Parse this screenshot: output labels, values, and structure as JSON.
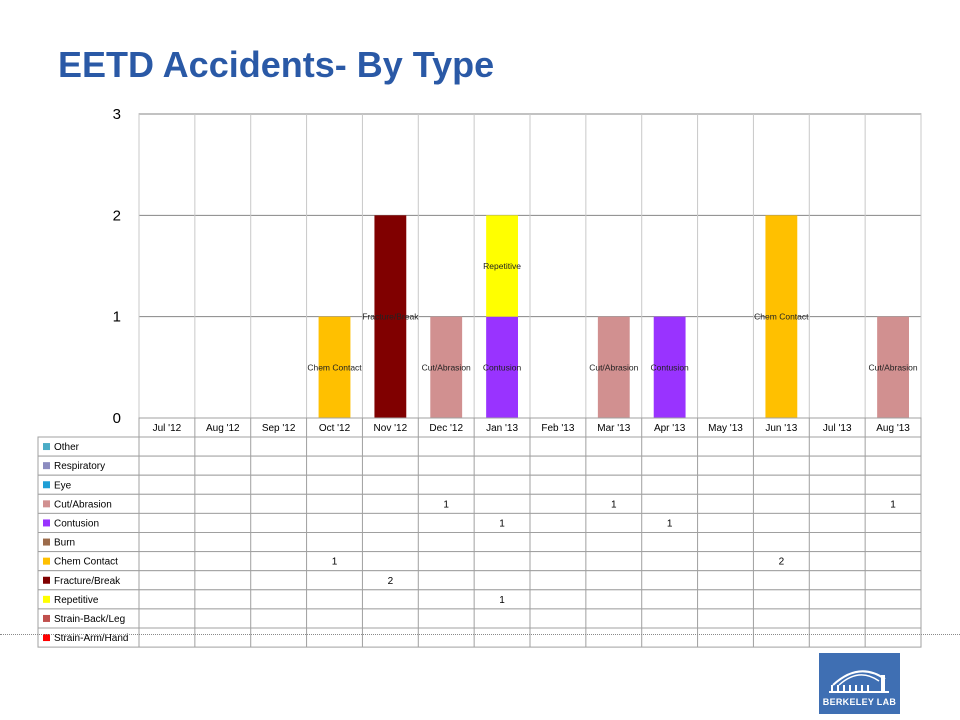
{
  "title": "EETD Accidents- By Type",
  "logo": {
    "text": "BERKELEY LAB"
  },
  "chart_data": {
    "type": "bar",
    "stacked": true,
    "categories": [
      "Jul '12",
      "Aug '12",
      "Sep '12",
      "Oct '12",
      "Nov '12",
      "Dec '12",
      "Jan '13",
      "Feb '13",
      "Mar '13",
      "Apr '13",
      "May '13",
      "Jun '13",
      "Jul '13",
      "Aug '13"
    ],
    "ylim": [
      0,
      3
    ],
    "yticks": [
      0,
      1,
      2,
      3
    ],
    "grid": true,
    "legend": "data-table-below",
    "series": [
      {
        "name": "Other",
        "color": "#4bacc6",
        "values": [
          null,
          null,
          null,
          null,
          null,
          null,
          null,
          null,
          null,
          null,
          null,
          null,
          null,
          null
        ]
      },
      {
        "name": "Respiratory",
        "color": "#8c8cc0",
        "values": [
          null,
          null,
          null,
          null,
          null,
          null,
          null,
          null,
          null,
          null,
          null,
          null,
          null,
          null
        ]
      },
      {
        "name": "Eye",
        "color": "#1f9fd6",
        "values": [
          null,
          null,
          null,
          null,
          null,
          null,
          null,
          null,
          null,
          null,
          null,
          null,
          null,
          null
        ]
      },
      {
        "name": "Cut/Abrasion",
        "color": "#d19090",
        "values": [
          null,
          null,
          null,
          null,
          null,
          1,
          null,
          null,
          1,
          null,
          null,
          null,
          null,
          1
        ]
      },
      {
        "name": "Contusion",
        "color": "#9933ff",
        "values": [
          null,
          null,
          null,
          null,
          null,
          null,
          1,
          null,
          null,
          1,
          null,
          null,
          null,
          null
        ]
      },
      {
        "name": "Burn",
        "color": "#9c6b4a",
        "values": [
          null,
          null,
          null,
          null,
          null,
          null,
          null,
          null,
          null,
          null,
          null,
          null,
          null,
          null
        ]
      },
      {
        "name": "Chem Contact",
        "color": "#ffc000",
        "values": [
          null,
          null,
          null,
          1,
          null,
          null,
          null,
          null,
          null,
          null,
          null,
          2,
          null,
          null
        ]
      },
      {
        "name": "Fracture/Break",
        "color": "#800000",
        "values": [
          null,
          null,
          null,
          null,
          2,
          null,
          null,
          null,
          null,
          null,
          null,
          null,
          null,
          null
        ]
      },
      {
        "name": "Repetitive",
        "color": "#ffff00",
        "values": [
          null,
          null,
          null,
          null,
          null,
          null,
          1,
          null,
          null,
          null,
          null,
          null,
          null,
          null
        ]
      },
      {
        "name": "Strain-Back/Leg",
        "color": "#c0504d",
        "values": [
          null,
          null,
          null,
          null,
          null,
          null,
          null,
          null,
          null,
          null,
          null,
          null,
          null,
          null
        ]
      },
      {
        "name": "Strain-Arm/Hand",
        "color": "#ff0000",
        "values": [
          null,
          null,
          null,
          null,
          null,
          null,
          null,
          null,
          null,
          null,
          null,
          null,
          null,
          null
        ]
      }
    ]
  }
}
